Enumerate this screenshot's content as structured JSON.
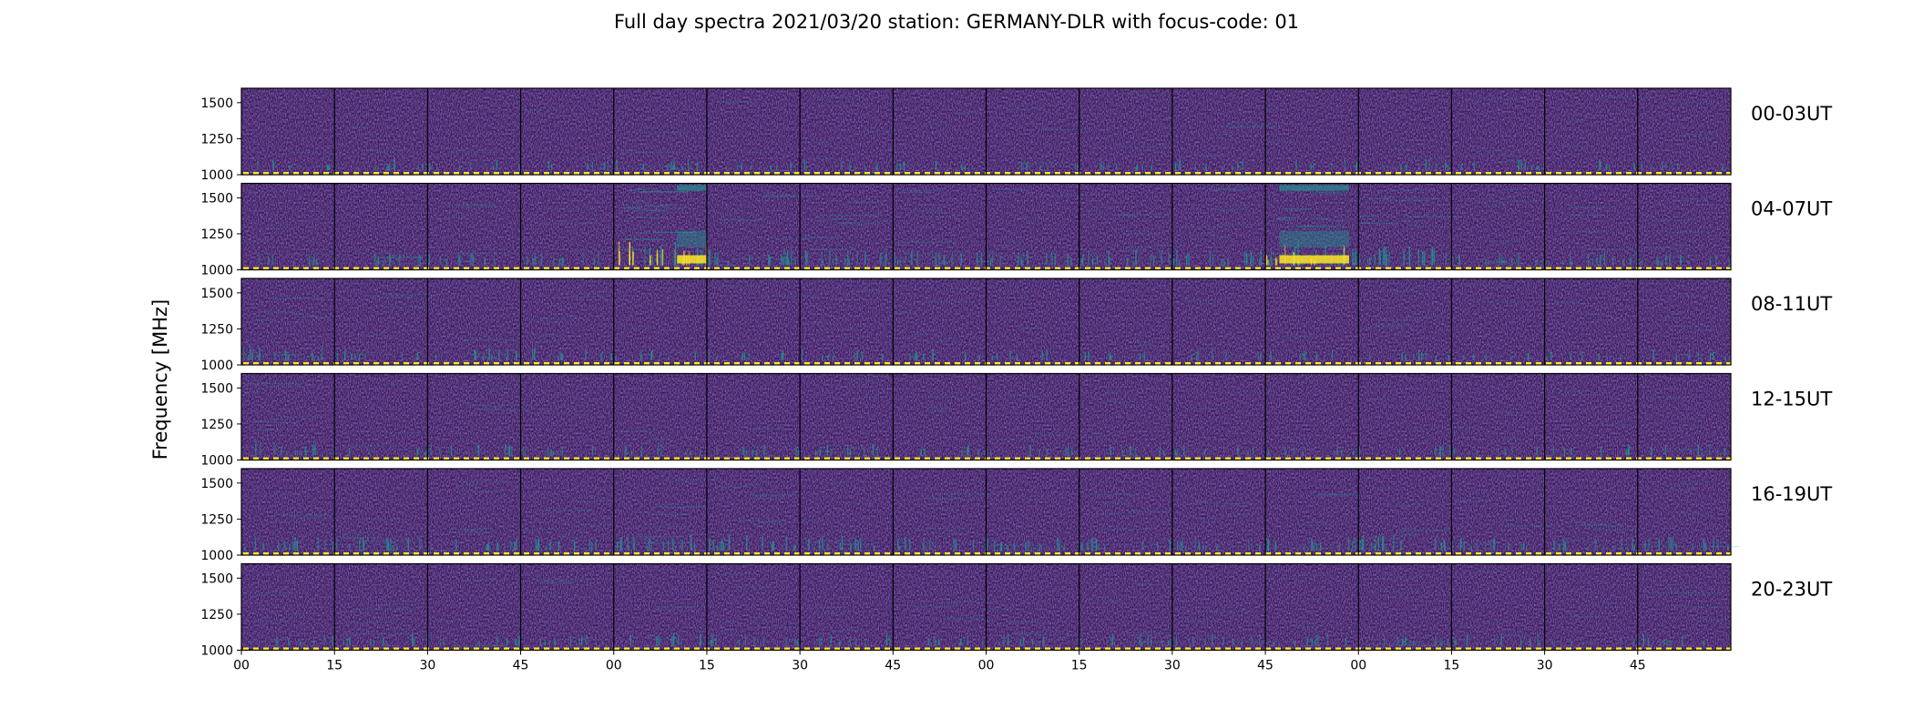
{
  "chart_data": {
    "type": "heatmap",
    "title": "Full day spectra 2021/03/20 station: GERMANY-DLR with focus-code: 01",
    "ylabel": "Frequency [MHz]",
    "ylim": [
      1000,
      1600
    ],
    "yticks": [
      1000,
      1250,
      1500
    ],
    "xtick_labels": [
      "00",
      "15",
      "30",
      "45",
      "00",
      "15",
      "30",
      "45",
      "00",
      "15",
      "30",
      "45",
      "00",
      "15",
      "30",
      "45"
    ],
    "colormap": "viridis",
    "colors": {
      "background": "#3e1a5e",
      "low": "#440154",
      "mid": "#21918c",
      "high": "#fde725"
    },
    "grid": false,
    "rows": [
      {
        "label": "00-03UT",
        "activity": [
          0.1,
          0.15,
          0.1,
          0.1,
          0.2,
          0.1,
          0.15,
          0.1,
          0.1,
          0.15,
          0.2,
          0.1,
          0.15,
          0.15,
          0.1,
          0.1
        ]
      },
      {
        "label": "04-07UT",
        "activity": [
          0.15,
          0.2,
          0.2,
          0.25,
          0.95,
          0.5,
          0.35,
          0.4,
          0.35,
          0.4,
          0.45,
          0.9,
          0.6,
          0.3,
          0.3,
          0.25
        ]
      },
      {
        "label": "08-11UT",
        "activity": [
          0.35,
          0.2,
          0.25,
          0.2,
          0.15,
          0.1,
          0.15,
          0.2,
          0.1,
          0.1,
          0.1,
          0.1,
          0.15,
          0.1,
          0.1,
          0.15
        ]
      },
      {
        "label": "12-15UT",
        "activity": [
          0.3,
          0.1,
          0.15,
          0.1,
          0.15,
          0.15,
          0.2,
          0.1,
          0.1,
          0.1,
          0.1,
          0.1,
          0.1,
          0.1,
          0.1,
          0.15
        ]
      },
      {
        "label": "16-19UT",
        "activity": [
          0.3,
          0.3,
          0.25,
          0.25,
          0.45,
          0.4,
          0.35,
          0.3,
          0.25,
          0.25,
          0.25,
          0.3,
          0.4,
          0.3,
          0.25,
          0.3
        ]
      },
      {
        "label": "20-23UT",
        "activity": [
          0.15,
          0.3,
          0.15,
          0.15,
          0.2,
          0.25,
          0.15,
          0.15,
          0.15,
          0.2,
          0.15,
          0.15,
          0.15,
          0.2,
          0.1,
          0.15
        ]
      }
    ]
  }
}
